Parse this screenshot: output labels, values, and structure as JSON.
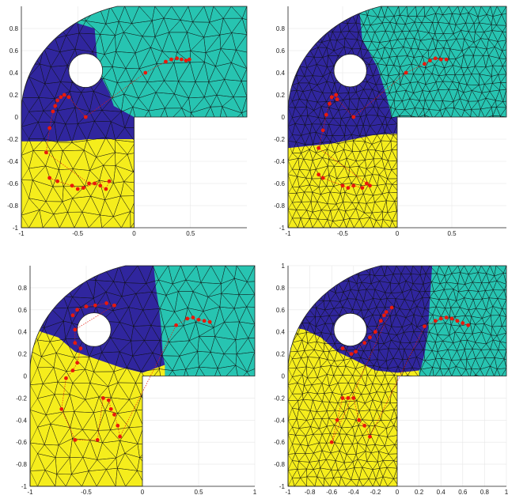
{
  "chart_data": [
    {
      "type": "scatter",
      "title": "",
      "xlabel": "",
      "ylabel": "",
      "xlim": [
        -1,
        1
      ],
      "ylim": [
        -1,
        1
      ],
      "grid": true,
      "xticks": [
        "-1",
        "-0.5",
        "0",
        "0.5"
      ],
      "yticks": [
        "-1",
        "-0.8",
        "-0.6",
        "-0.4",
        "-0.2",
        "0",
        "0.2",
        "0.4",
        "0.6",
        "0.8"
      ],
      "regions": {
        "blue": "#30269e",
        "teal": "#27c4b1",
        "yellow": "#f5ed1c"
      },
      "boundary_blue_teal": [
        [
          -0.35,
          0.8
        ],
        [
          -0.33,
          0.55
        ],
        [
          -0.3,
          0.38
        ],
        [
          -0.22,
          0.22
        ],
        [
          -0.18,
          0.1
        ],
        [
          0.0,
          0.0
        ]
      ],
      "boundary_blue_yellow": [
        [
          -1.0,
          -0.22
        ],
        [
          -0.8,
          -0.22
        ],
        [
          -0.6,
          -0.22
        ],
        [
          -0.4,
          -0.2
        ],
        [
          -0.2,
          -0.2
        ],
        [
          0.0,
          -0.2
        ]
      ],
      "point_color": "#e8190c",
      "points": [
        [
          -0.75,
          -0.55
        ],
        [
          -0.68,
          -0.58
        ],
        [
          -0.55,
          -0.62
        ],
        [
          -0.5,
          -0.65
        ],
        [
          -0.45,
          -0.64
        ],
        [
          -0.35,
          -0.6
        ],
        [
          -0.3,
          -0.62
        ],
        [
          -0.25,
          -0.65
        ],
        [
          -0.22,
          -0.58
        ],
        [
          -0.4,
          -0.6
        ],
        [
          -0.78,
          -0.32
        ],
        [
          -0.75,
          -0.1
        ],
        [
          -0.72,
          0.05
        ],
        [
          -0.7,
          0.1
        ],
        [
          -0.68,
          0.15
        ],
        [
          -0.65,
          0.18
        ],
        [
          -0.62,
          0.2
        ],
        [
          -0.58,
          0.18
        ],
        [
          -0.43,
          0.0
        ],
        [
          0.1,
          0.4
        ],
        [
          0.28,
          0.5
        ],
        [
          0.33,
          0.52
        ],
        [
          0.38,
          0.53
        ],
        [
          0.42,
          0.52
        ],
        [
          0.46,
          0.51
        ],
        [
          0.49,
          0.52
        ]
      ]
    },
    {
      "type": "scatter",
      "title": "",
      "xlabel": "",
      "ylabel": "",
      "xlim": [
        -1,
        1
      ],
      "ylim": [
        -1,
        1
      ],
      "grid": true,
      "xticks": [
        "-1",
        "-0.5",
        "0",
        "0.5"
      ],
      "yticks": [
        "-1",
        "-0.8",
        "-0.6",
        "-0.4",
        "-0.2",
        "0",
        "0.2",
        "0.4",
        "0.6",
        "0.8"
      ],
      "regions": {
        "blue": "#30269e",
        "teal": "#27c4b1",
        "yellow": "#f5ed1c"
      },
      "boundary_blue_teal": [
        [
          -0.35,
          1.0
        ],
        [
          -0.32,
          0.7
        ],
        [
          -0.18,
          0.45
        ],
        [
          -0.1,
          0.2
        ],
        [
          -0.05,
          0.0
        ],
        [
          0.0,
          0.0
        ]
      ],
      "boundary_blue_yellow": [
        [
          -1.0,
          -0.28
        ],
        [
          -0.8,
          -0.26
        ],
        [
          -0.6,
          -0.24
        ],
        [
          -0.4,
          -0.2
        ],
        [
          -0.2,
          -0.16
        ],
        [
          0.0,
          -0.15
        ]
      ],
      "point_color": "#e8190c",
      "points": [
        [
          -0.72,
          -0.52
        ],
        [
          -0.68,
          -0.55
        ],
        [
          -0.5,
          -0.62
        ],
        [
          -0.45,
          -0.64
        ],
        [
          -0.4,
          -0.62
        ],
        [
          -0.32,
          -0.64
        ],
        [
          -0.28,
          -0.6
        ],
        [
          -0.25,
          -0.62
        ],
        [
          -0.72,
          -0.28
        ],
        [
          -0.68,
          -0.12
        ],
        [
          -0.65,
          0.02
        ],
        [
          -0.62,
          0.12
        ],
        [
          -0.6,
          0.18
        ],
        [
          -0.56,
          0.2
        ],
        [
          -0.55,
          0.16
        ],
        [
          -0.4,
          0.0
        ],
        [
          0.08,
          0.4
        ],
        [
          0.25,
          0.48
        ],
        [
          0.3,
          0.51
        ],
        [
          0.35,
          0.53
        ],
        [
          0.4,
          0.52
        ],
        [
          0.45,
          0.52
        ]
      ]
    },
    {
      "type": "scatter",
      "title": "",
      "xlabel": "",
      "ylabel": "",
      "xlim": [
        -1,
        1
      ],
      "ylim": [
        -1,
        1
      ],
      "grid": true,
      "xticks": [
        "-1",
        "-0.5",
        "0",
        "0.5",
        "1"
      ],
      "yticks": [
        "-1",
        "-0.8",
        "-0.6",
        "-0.4",
        "-0.2",
        "0",
        "0.2",
        "0.4",
        "0.6",
        "0.8"
      ],
      "regions": {
        "blue": "#30269e",
        "teal": "#27c4b1",
        "yellow": "#f5ed1c"
      },
      "boundary_blue_teal": [
        [
          0.1,
          1.0
        ],
        [
          0.12,
          0.8
        ],
        [
          0.15,
          0.6
        ],
        [
          0.17,
          0.4
        ],
        [
          0.18,
          0.2
        ],
        [
          0.2,
          0.1
        ]
      ],
      "boundary_blue_yellow": [
        [
          -1.0,
          0.45
        ],
        [
          -0.9,
          0.4
        ],
        [
          -0.75,
          0.35
        ],
        [
          -0.6,
          0.22
        ],
        [
          -0.4,
          0.15
        ],
        [
          -0.2,
          0.08
        ],
        [
          0.0,
          0.03
        ],
        [
          0.2,
          0.1
        ]
      ],
      "point_color": "#e8190c",
      "points": [
        [
          -0.62,
          0.55
        ],
        [
          -0.58,
          0.6
        ],
        [
          -0.5,
          0.63
        ],
        [
          -0.42,
          0.64
        ],
        [
          -0.32,
          0.66
        ],
        [
          -0.25,
          0.64
        ],
        [
          -0.6,
          0.42
        ],
        [
          -0.6,
          0.3
        ],
        [
          -0.55,
          0.25
        ],
        [
          -0.58,
          0.12
        ],
        [
          -0.62,
          0.05
        ],
        [
          -0.68,
          -0.02
        ],
        [
          -0.72,
          -0.3
        ],
        [
          -0.6,
          -0.58
        ],
        [
          -0.4,
          -0.58
        ],
        [
          -0.35,
          -0.2
        ],
        [
          -0.3,
          -0.22
        ],
        [
          -0.28,
          -0.3
        ],
        [
          -0.25,
          -0.35
        ],
        [
          -0.22,
          -0.45
        ],
        [
          -0.2,
          -0.55
        ],
        [
          0.3,
          0.46
        ],
        [
          0.4,
          0.52
        ],
        [
          0.45,
          0.53
        ],
        [
          0.5,
          0.51
        ],
        [
          0.55,
          0.5
        ],
        [
          0.6,
          0.49
        ]
      ]
    },
    {
      "type": "scatter",
      "title": "",
      "xlabel": "",
      "ylabel": "",
      "xlim": [
        -1,
        1
      ],
      "ylim": [
        -1,
        1
      ],
      "grid": true,
      "xticks": [
        "-1",
        "-0.8",
        "-0.6",
        "-0.4",
        "-0.2",
        "0",
        "0.2",
        "0.4",
        "0.6",
        "0.8",
        "1"
      ],
      "yticks": [
        "-1",
        "-0.8",
        "-0.6",
        "-0.4",
        "-0.2",
        "0",
        "0.2",
        "0.4",
        "0.6",
        "0.8",
        "1"
      ],
      "regions": {
        "blue": "#30269e",
        "teal": "#27c4b1",
        "yellow": "#f5ed1c"
      },
      "boundary_blue_teal": [
        [
          0.32,
          1.0
        ],
        [
          0.3,
          0.7
        ],
        [
          0.28,
          0.4
        ],
        [
          0.25,
          0.2
        ],
        [
          0.22,
          0.08
        ],
        [
          0.2,
          0.05
        ]
      ],
      "boundary_blue_yellow": [
        [
          -1.0,
          0.45
        ],
        [
          -0.85,
          0.42
        ],
        [
          -0.7,
          0.35
        ],
        [
          -0.55,
          0.22
        ],
        [
          -0.4,
          0.15
        ],
        [
          -0.2,
          0.05
        ],
        [
          0.0,
          0.03
        ],
        [
          0.2,
          0.05
        ]
      ],
      "point_color": "#e8190c",
      "points": [
        [
          -0.5,
          0.25
        ],
        [
          -0.42,
          0.2
        ],
        [
          -0.38,
          0.22
        ],
        [
          -0.3,
          0.3
        ],
        [
          -0.25,
          0.35
        ],
        [
          -0.2,
          0.4
        ],
        [
          -0.15,
          0.5
        ],
        [
          -0.12,
          0.55
        ],
        [
          -0.1,
          0.58
        ],
        [
          -0.05,
          0.62
        ],
        [
          -0.6,
          -0.6
        ],
        [
          -0.55,
          -0.4
        ],
        [
          -0.5,
          -0.2
        ],
        [
          -0.45,
          -0.2
        ],
        [
          -0.4,
          -0.2
        ],
        [
          -0.35,
          -0.4
        ],
        [
          -0.3,
          -0.45
        ],
        [
          -0.25,
          -0.55
        ],
        [
          0.25,
          0.45
        ],
        [
          0.35,
          0.5
        ],
        [
          0.4,
          0.52
        ],
        [
          0.45,
          0.53
        ],
        [
          0.5,
          0.52
        ],
        [
          0.55,
          0.5
        ],
        [
          0.6,
          0.48
        ],
        [
          0.65,
          0.46
        ]
      ]
    }
  ]
}
